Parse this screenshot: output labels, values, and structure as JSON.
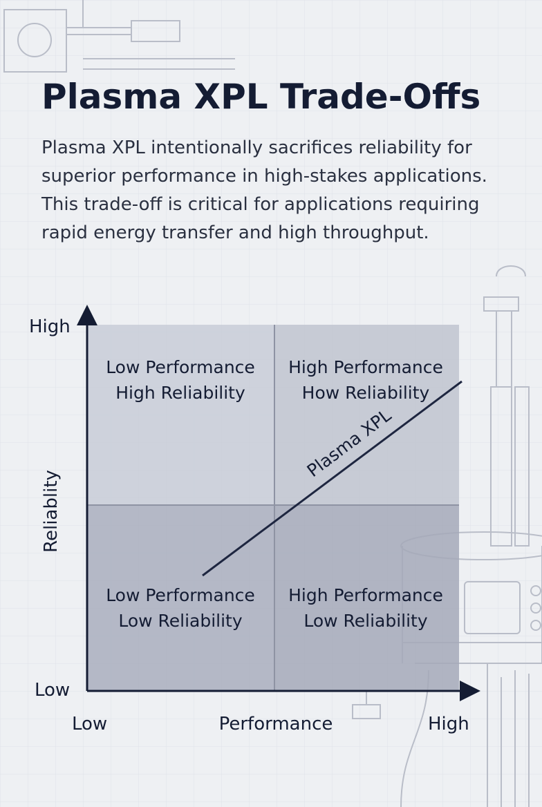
{
  "header": {
    "title": "Plasma XPL Trade-Offs",
    "description": [
      "Plasma XPL intentionally sacrifices reliability for",
      "superior performance in high-stakes applications.",
      "This trade-off is critical for applications requiring",
      "rapid energy transfer and high throughput."
    ]
  },
  "diagram": {
    "y_axis": {
      "label": "Reliablity",
      "high": "High",
      "low": "Low"
    },
    "x_axis": {
      "label": "Performance",
      "low": "Low",
      "high": "High"
    },
    "quadrants": [
      {
        "lines": [
          "Low Performance",
          "High Reliability"
        ]
      },
      {
        "lines": [
          "High Performance",
          "How Reliability"
        ]
      },
      {
        "lines": [
          "Low Performance",
          "Low Reliability"
        ]
      },
      {
        "lines": [
          "High Performance",
          "Low Reliability"
        ]
      }
    ],
    "trend_label": "Plasma XPL"
  }
}
